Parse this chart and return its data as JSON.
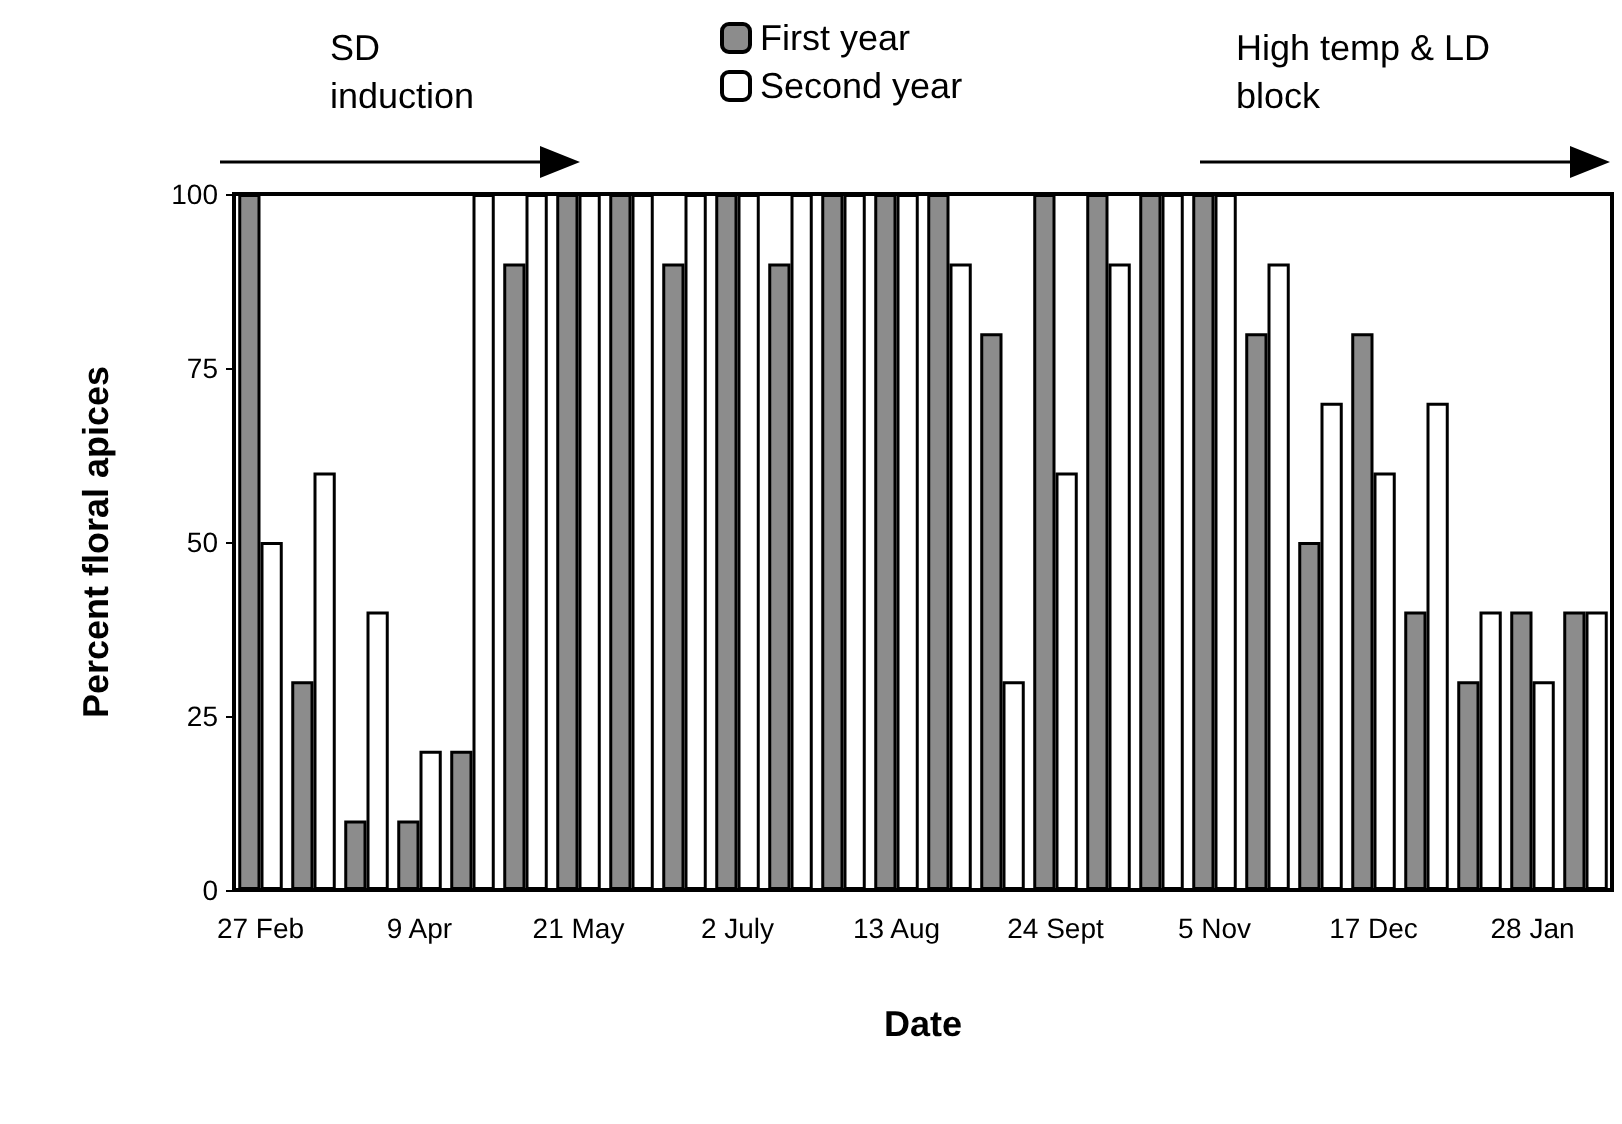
{
  "chart_data": {
    "type": "bar",
    "xlabel": "Date",
    "ylabel": "Percent floral apices",
    "categories": [
      "27 Feb",
      null,
      null,
      "9 Apr",
      null,
      null,
      "21 May",
      null,
      null,
      "2 July",
      null,
      null,
      "13 Aug",
      null,
      null,
      "24 Sept",
      null,
      null,
      "5 Nov",
      null,
      null,
      "17 Dec",
      null,
      null,
      "28 Jan",
      null
    ],
    "series": [
      {
        "name": "First year",
        "color": "#8c8c8c",
        "values": [
          100,
          30,
          10,
          10,
          20,
          90,
          100,
          100,
          90,
          100,
          90,
          100,
          100,
          100,
          80,
          100,
          100,
          100,
          100,
          80,
          50,
          80,
          40,
          30,
          40,
          40
        ]
      },
      {
        "name": "Second year",
        "color": "#ffffff",
        "values": [
          50,
          60,
          40,
          20,
          100,
          100,
          100,
          100,
          100,
          100,
          100,
          100,
          100,
          90,
          30,
          60,
          90,
          100,
          100,
          90,
          70,
          60,
          70,
          40,
          30,
          40
        ]
      }
    ],
    "ylim": [
      0,
      100
    ],
    "yticks": [
      0,
      25,
      50,
      75,
      100
    ],
    "grid": false,
    "legend": "top",
    "annotations": [
      "SD induction",
      "High temp & LD block"
    ]
  }
}
